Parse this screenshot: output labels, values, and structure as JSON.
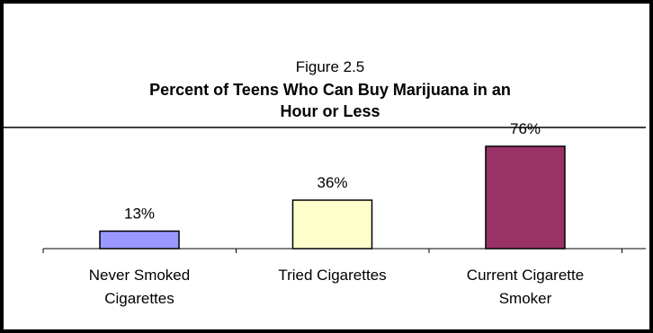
{
  "chart_data": {
    "type": "bar",
    "title": "Percent of Teens  Who Can Buy Marijuana in an Hour or Less",
    "title_lines": [
      "Percent of Teens  Who Can Buy Marijuana in an",
      "Hour or Less"
    ],
    "subtitle": "Figure 2.5",
    "categories": [
      "Never Smoked Cigarettes",
      "Tried Cigarettes",
      "Current Cigarette Smoker"
    ],
    "category_lines": [
      [
        "Never Smoked",
        "Cigarettes"
      ],
      [
        "Tried Cigarettes"
      ],
      [
        "Current Cigarette",
        "Smoker"
      ]
    ],
    "values": [
      13,
      36,
      76
    ],
    "value_labels": [
      "13%",
      "36%",
      "76%"
    ],
    "bar_colors": [
      "#9999ff",
      "#ffffcc",
      "#993366"
    ],
    "ylim": [
      0,
      80
    ],
    "xlabel": "",
    "ylabel": "",
    "grid": false,
    "legend": "none"
  }
}
